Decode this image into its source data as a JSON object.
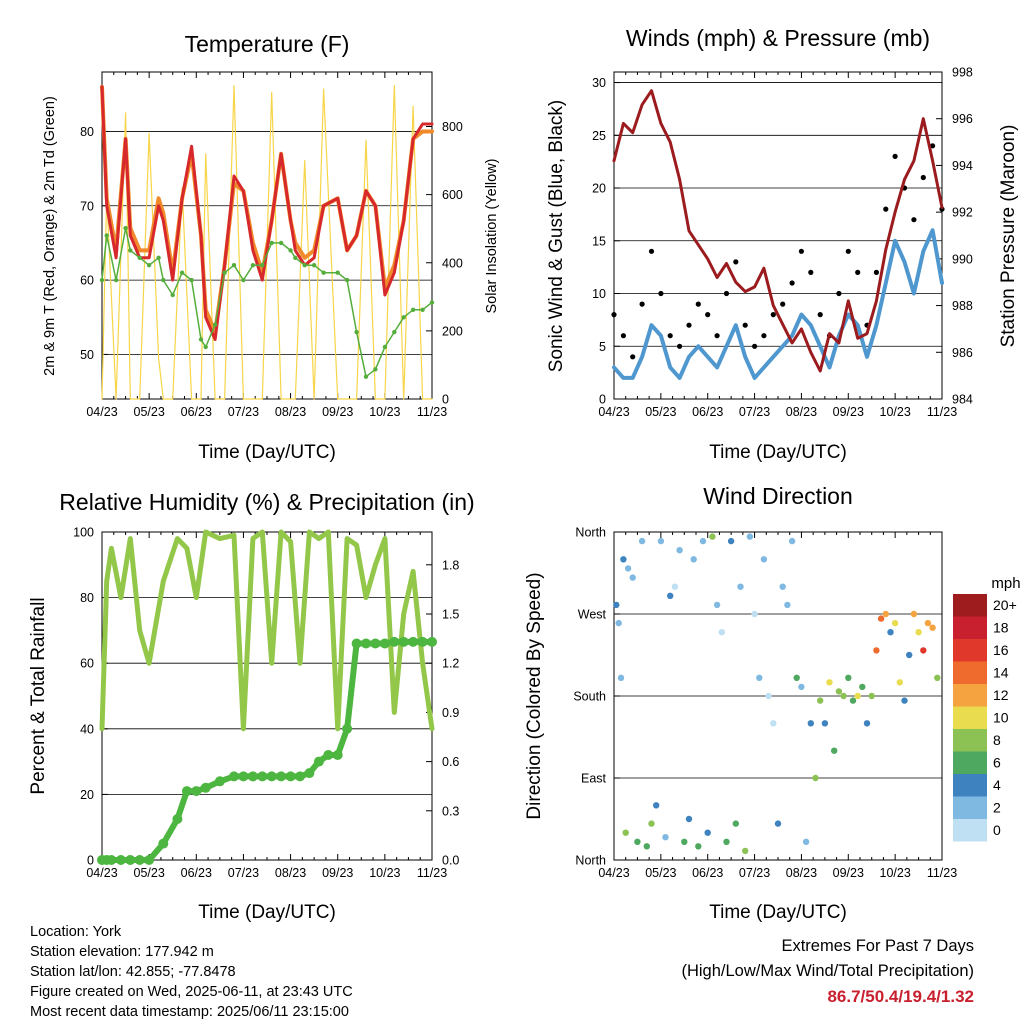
{
  "panels": [
    {
      "title": "Temperature (F)",
      "y_label_left": "2m & 9m T (Red, Orange) & 2m Td (Green)",
      "y_label_right": "Solar Insolation (Yellow)",
      "x_label": "Time (Day/UTC)"
    },
    {
      "title": "Winds (mph) & Pressure (mb)",
      "y_label_left": "Sonic Wind & Gust (Blue, Black)",
      "y_label_right": "Station Pressure (Maroon)",
      "x_label": "Time (Day/UTC)"
    },
    {
      "title": "Relative Humidity (%) & Precipitation (in)",
      "y_label_left": "Percent & Total Rainfall",
      "x_label": "Time (Day/UTC)"
    },
    {
      "title": "Wind Direction",
      "y_label_left": "Direction (Colored By Speed)",
      "x_label": "Time (Day/UTC)"
    }
  ],
  "colorbar": {
    "unit": "mph",
    "labels": [
      "20+",
      "18",
      "16",
      "14",
      "12",
      "10",
      "8",
      "6",
      "4",
      "2",
      "0"
    ],
    "colors": [
      "#9e1b1e",
      "#c8202e",
      "#e0382b",
      "#ee6a2d",
      "#f4a340",
      "#e9dc4f",
      "#8cc153",
      "#4ea860",
      "#3e83bf",
      "#7fb9e2",
      "#bfe0f3"
    ]
  },
  "info": {
    "location": "Location: York",
    "elevation": "Station elevation: 177.942 m",
    "latlon": "Station lat/lon: 42.855; -77.8478",
    "created": "Figure created on Wed, 2025-06-11, at 23:43 UTC",
    "recent": "Most recent data timestamp: 2025/06/11 23:15:00"
  },
  "extremes": {
    "title": "Extremes For Past 7 Days",
    "subtitle": "(High/Low/Max Wind/Total Precipitation)",
    "values": "86.7/50.4/19.4/1.32"
  },
  "colors": {
    "t2m": "#d7282b",
    "t9m": "#f08a2a",
    "td": "#55ad3c",
    "solar": "#f7d548",
    "gust": "#000000",
    "wind": "#4f97cf",
    "pressure": "#9b1b1e",
    "rh": "#93c74a",
    "precip": "#4db640"
  },
  "chart_data": [
    {
      "type": "line",
      "title": "Temperature (F)",
      "xlabel": "Time (Day/UTC)",
      "ylabel": "2m & 9m T (Red, Orange) & 2m Td (Green)",
      "y2label": "Solar Insolation (Yellow)",
      "x_ticks": [
        "04/23",
        "05/23",
        "06/23",
        "07/23",
        "08/23",
        "09/23",
        "10/23",
        "11/23"
      ],
      "x": [
        0,
        0.1,
        0.3,
        0.5,
        0.6,
        0.8,
        1.0,
        1.2,
        1.3,
        1.5,
        1.7,
        1.9,
        2.1,
        2.2,
        2.4,
        2.6,
        2.8,
        3.0,
        3.2,
        3.4,
        3.6,
        3.8,
        4.0,
        4.1,
        4.3,
        4.5,
        4.7,
        5.0,
        5.2,
        5.4,
        5.6,
        5.8,
        6.0,
        6.2,
        6.4,
        6.6,
        6.8,
        7.0
      ],
      "ylim": [
        44,
        88
      ],
      "yticks": [
        50,
        60,
        70,
        80
      ],
      "y2lim": [
        0,
        960
      ],
      "y2ticks": [
        0,
        200,
        400,
        600,
        800
      ],
      "series": [
        {
          "name": "2m T",
          "axis": "left",
          "values": [
            86,
            70,
            63,
            79,
            66,
            63,
            63,
            70,
            68,
            60,
            71,
            78,
            66,
            55,
            52,
            62,
            74,
            72,
            64,
            60,
            68,
            77,
            68,
            64,
            62,
            63,
            70,
            71,
            64,
            66,
            72,
            70,
            58,
            61,
            68,
            79,
            81,
            81
          ]
        },
        {
          "name": "9m T",
          "axis": "left",
          "values": [
            86,
            71,
            64,
            79,
            67,
            64,
            64,
            71,
            69,
            61,
            71,
            77,
            66,
            56,
            53,
            62,
            73,
            72,
            65,
            61,
            68,
            77,
            68,
            65,
            63,
            64,
            70,
            71,
            64,
            66,
            72,
            70,
            59,
            62,
            68,
            79,
            80,
            80
          ]
        },
        {
          "name": "2m Td",
          "axis": "left",
          "values": [
            60,
            66,
            60,
            67,
            64,
            63,
            62,
            63,
            60,
            58,
            61,
            60,
            52,
            51,
            54,
            61,
            62,
            60,
            62,
            62,
            65,
            65,
            64,
            63,
            62,
            62,
            61,
            61,
            60,
            53,
            47,
            48,
            51,
            53,
            55,
            56,
            56,
            57
          ]
        },
        {
          "name": "Solar Insolation",
          "axis": "right",
          "values": [
            0,
            600,
            0,
            840,
            0,
            0,
            780,
            120,
            0,
            0,
            620,
            0,
            0,
            720,
            0,
            0,
            920,
            0,
            0,
            0,
            900,
            0,
            0,
            0,
            700,
            0,
            910,
            0,
            0,
            0,
            760,
            0,
            0,
            920,
            0,
            860,
            0,
            0
          ]
        }
      ]
    },
    {
      "type": "line",
      "title": "Winds (mph) & Pressure (mb)",
      "xlabel": "Time (Day/UTC)",
      "ylabel": "Sonic Wind & Gust (Blue, Black)",
      "y2label": "Station Pressure (Maroon)",
      "x_ticks": [
        "04/23",
        "05/23",
        "06/23",
        "07/23",
        "08/23",
        "09/23",
        "10/23",
        "11/23"
      ],
      "x": [
        0,
        0.2,
        0.4,
        0.6,
        0.8,
        1.0,
        1.2,
        1.4,
        1.6,
        1.8,
        2.0,
        2.2,
        2.4,
        2.6,
        2.8,
        3.0,
        3.2,
        3.4,
        3.6,
        3.8,
        4.0,
        4.2,
        4.4,
        4.6,
        4.8,
        5.0,
        5.2,
        5.4,
        5.6,
        5.8,
        6.0,
        6.2,
        6.4,
        6.6,
        6.8,
        7.0
      ],
      "ylim": [
        0,
        31
      ],
      "yticks": [
        0,
        5,
        10,
        15,
        20,
        25,
        30
      ],
      "y2lim": [
        984,
        998
      ],
      "y2ticks": [
        984,
        986,
        988,
        990,
        992,
        994,
        996,
        998
      ],
      "series": [
        {
          "name": "Gust",
          "axis": "left",
          "values": [
            8,
            6,
            4,
            9,
            14,
            10,
            6,
            5,
            7,
            9,
            8,
            6,
            10,
            13,
            7,
            5,
            6,
            8,
            9,
            11,
            14,
            12,
            8,
            6,
            10,
            14,
            12,
            7,
            12,
            18,
            23,
            20,
            17,
            21,
            24,
            18
          ]
        },
        {
          "name": "Sonic Wind",
          "axis": "left",
          "values": [
            3,
            2,
            2,
            4,
            7,
            6,
            3,
            2,
            4,
            5,
            4,
            3,
            5,
            7,
            4,
            2,
            3,
            4,
            5,
            6,
            8,
            7,
            5,
            3,
            6,
            8,
            7,
            4,
            7,
            11,
            15,
            13,
            10,
            14,
            16,
            11
          ]
        },
        {
          "name": "Station Pressure",
          "axis": "right",
          "values": [
            994.2,
            995.8,
            995.4,
            996.6,
            997.2,
            995.8,
            995.0,
            993.4,
            991.2,
            990.6,
            990.0,
            989.2,
            989.8,
            989.0,
            988.6,
            988.8,
            989.6,
            988.0,
            987.2,
            986.4,
            987.0,
            986.0,
            985.2,
            986.8,
            986.4,
            988.2,
            986.6,
            986.8,
            988.2,
            990.4,
            992.0,
            993.4,
            994.2,
            996.0,
            994.2,
            992.2
          ]
        }
      ]
    },
    {
      "type": "line",
      "title": "Relative Humidity (%) & Precipitation (in)",
      "xlabel": "Time (Day/UTC)",
      "ylabel": "Percent & Total Rainfall",
      "x_ticks": [
        "04/23",
        "05/23",
        "06/23",
        "07/23",
        "08/23",
        "09/23",
        "10/23",
        "11/23"
      ],
      "x": [
        0,
        0.1,
        0.2,
        0.4,
        0.6,
        0.8,
        1.0,
        1.3,
        1.6,
        1.8,
        2.0,
        2.2,
        2.5,
        2.8,
        3.0,
        3.2,
        3.4,
        3.6,
        3.8,
        4.0,
        4.2,
        4.4,
        4.6,
        4.8,
        5.0,
        5.2,
        5.4,
        5.6,
        5.8,
        6.0,
        6.2,
        6.4,
        6.6,
        6.8,
        7.0
      ],
      "ylim": [
        0,
        100
      ],
      "yticks": [
        0,
        20,
        40,
        60,
        80,
        100
      ],
      "y2lim": [
        0,
        2.0
      ],
      "y2ticks": [
        0.0,
        0.3,
        0.6,
        0.9,
        1.2,
        1.5,
        1.8
      ],
      "series": [
        {
          "name": "Relative Humidity",
          "axis": "left",
          "values": [
            40,
            85,
            95,
            80,
            98,
            70,
            60,
            85,
            98,
            95,
            80,
            100,
            98,
            99,
            40,
            98,
            100,
            60,
            100,
            97,
            60,
            100,
            98,
            100,
            40,
            98,
            96,
            80,
            90,
            98,
            45,
            75,
            88,
            60,
            40
          ]
        },
        {
          "name": "Total Rainfall",
          "axis": "right",
          "values": [
            0.0,
            0.0,
            0.0,
            0.0,
            0.0,
            0.0,
            0.0,
            0.1,
            0.25,
            0.42,
            0.42,
            0.44,
            0.48,
            0.51,
            0.51,
            0.51,
            0.51,
            0.51,
            0.51,
            0.51,
            0.51,
            0.53,
            0.6,
            0.64,
            0.64,
            0.8,
            1.32,
            1.32,
            1.32,
            1.32,
            1.33,
            1.33,
            1.33,
            1.33,
            1.33
          ]
        }
      ]
    },
    {
      "type": "scatter",
      "title": "Wind Direction",
      "xlabel": "Time (Day/UTC)",
      "ylabel": "Direction (Colored By Speed)",
      "x_ticks": [
        "04/23",
        "05/23",
        "06/23",
        "07/23",
        "08/23",
        "09/23",
        "10/23",
        "11/23"
      ],
      "y_ticks": [
        "North",
        "East",
        "South",
        "West",
        "North"
      ],
      "ylim": [
        0,
        360
      ],
      "color_unit": "mph",
      "series": [
        {
          "name": "Wind Direction",
          "x": [
            0.05,
            0.1,
            0.15,
            0.2,
            0.25,
            0.3,
            0.4,
            0.5,
            0.6,
            0.7,
            0.8,
            0.9,
            1.0,
            1.1,
            1.2,
            1.3,
            1.4,
            1.5,
            1.6,
            1.7,
            1.8,
            1.9,
            2.0,
            2.1,
            2.2,
            2.3,
            2.4,
            2.5,
            2.6,
            2.7,
            2.8,
            2.9,
            3.0,
            3.1,
            3.2,
            3.3,
            3.4,
            3.5,
            3.6,
            3.7,
            3.8,
            3.9,
            4.0,
            4.1,
            4.2,
            4.3,
            4.4,
            4.5,
            4.6,
            4.7,
            4.8,
            4.9,
            5.0,
            5.1,
            5.2,
            5.3,
            5.4,
            5.5,
            5.6,
            5.7,
            5.8,
            5.9,
            6.0,
            6.1,
            6.2,
            6.3,
            6.4,
            6.5,
            6.6,
            6.7,
            6.8,
            6.9
          ],
          "y": [
            280,
            260,
            200,
            330,
            30,
            320,
            310,
            20,
            350,
            15,
            40,
            60,
            350,
            25,
            290,
            300,
            340,
            20,
            45,
            330,
            15,
            350,
            30,
            355,
            280,
            250,
            20,
            350,
            40,
            300,
            10,
            355,
            270,
            200,
            330,
            180,
            150,
            40,
            300,
            280,
            350,
            200,
            190,
            20,
            150,
            90,
            175,
            150,
            195,
            120,
            185,
            180,
            200,
            175,
            180,
            190,
            150,
            180,
            230,
            265,
            270,
            250,
            260,
            195,
            175,
            225,
            270,
            250,
            230,
            260,
            255,
            200
          ],
          "speed": [
            4,
            3,
            2,
            5,
            8,
            3,
            2,
            6,
            2,
            7,
            9,
            5,
            3,
            2,
            4,
            1,
            2,
            7,
            5,
            2,
            6,
            3,
            4,
            8,
            2,
            1,
            7,
            4,
            6,
            3,
            8,
            2,
            1,
            2,
            3,
            1,
            1,
            4,
            2,
            3,
            2,
            6,
            3,
            2,
            4,
            9,
            8,
            5,
            10,
            7,
            8,
            9,
            6,
            6,
            11,
            7,
            5,
            8,
            14,
            15,
            12,
            4,
            10,
            11,
            5,
            4,
            12,
            10,
            16,
            13,
            12,
            8
          ]
        }
      ]
    }
  ]
}
